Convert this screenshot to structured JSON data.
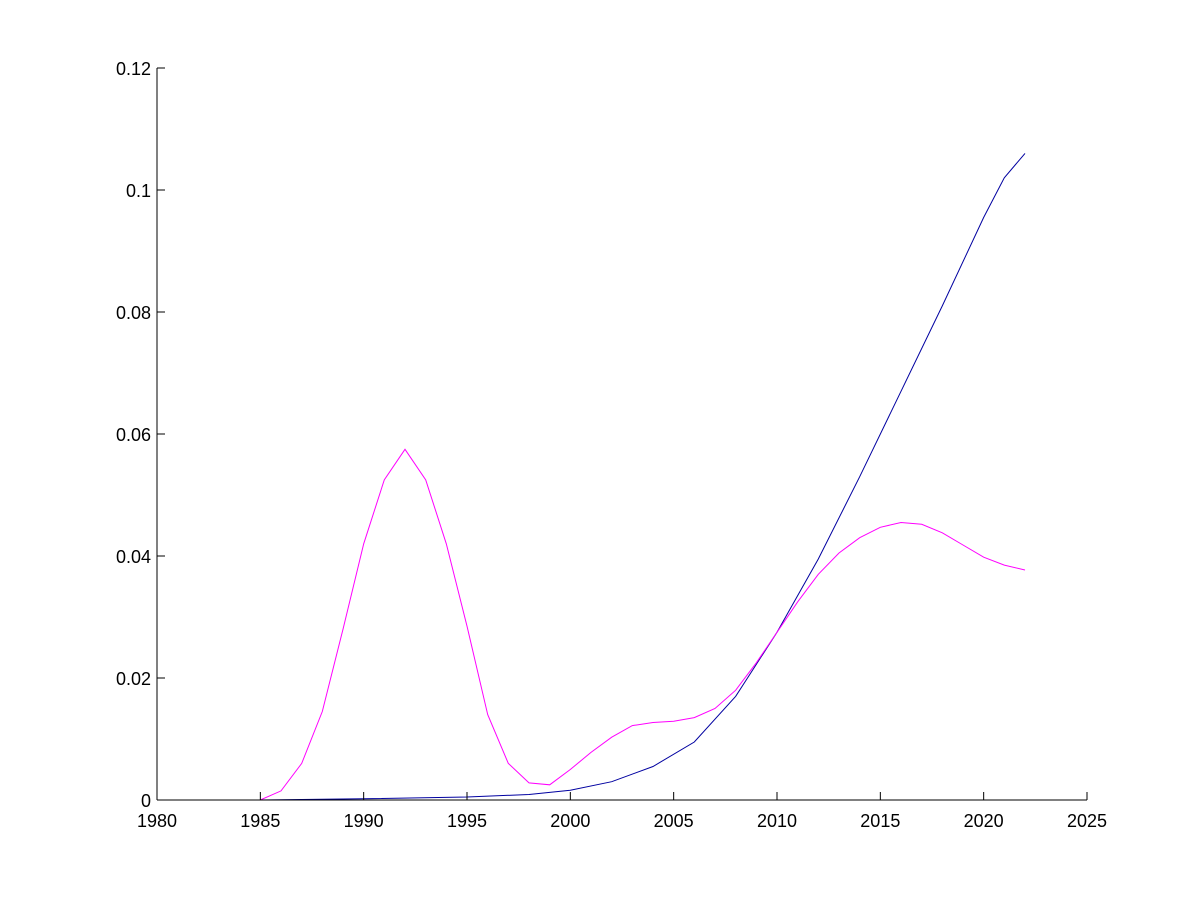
{
  "chart_data": {
    "type": "line",
    "title": "",
    "xlabel": "",
    "ylabel": "",
    "xlim": [
      1980,
      2025
    ],
    "ylim": [
      0,
      0.12
    ],
    "grid": false,
    "x_ticks": [
      1980,
      1985,
      1990,
      1995,
      2000,
      2005,
      2010,
      2015,
      2020,
      2025
    ],
    "x_tick_labels": [
      "1980",
      "1985",
      "1990",
      "1995",
      "2000",
      "2005",
      "2010",
      "2015",
      "2020",
      "2025"
    ],
    "y_ticks": [
      0,
      0.02,
      0.04,
      0.06,
      0.08,
      0.1,
      0.12
    ],
    "y_tick_labels": [
      "0",
      "0.02",
      "0.04",
      "0.06",
      "0.08",
      "0.1",
      "0.12"
    ],
    "series": [
      {
        "color": "#0000a0",
        "x": [
          1980,
          1985,
          1990,
          1995,
          1998,
          2000,
          2002,
          2004,
          2006,
          2008,
          2010,
          2012,
          2014,
          2016,
          2018,
          2020,
          2021,
          2022
        ],
        "y": [
          0,
          0,
          0.0002,
          0.0005,
          0.0009,
          0.0016,
          0.003,
          0.0055,
          0.0095,
          0.017,
          0.0275,
          0.0395,
          0.053,
          0.067,
          0.081,
          0.0955,
          0.102,
          0.106
        ]
      },
      {
        "color": "#ff00ff",
        "x": [
          1980,
          1985,
          1986,
          1987,
          1988,
          1989,
          1990,
          1991,
          1992,
          1993,
          1994,
          1995,
          1996,
          1997,
          1998,
          1999,
          2000,
          2001,
          2002,
          2003,
          2004,
          2005,
          2006,
          2007,
          2008,
          2009,
          2010,
          2011,
          2012,
          2013,
          2014,
          2015,
          2016,
          2017,
          2018,
          2019,
          2020,
          2021,
          2022
        ],
        "y": [
          0,
          0,
          0.0015,
          0.006,
          0.0145,
          0.028,
          0.042,
          0.0525,
          0.0575,
          0.0525,
          0.042,
          0.0285,
          0.014,
          0.006,
          0.0028,
          0.0025,
          0.005,
          0.0078,
          0.0103,
          0.0122,
          0.0127,
          0.0129,
          0.0135,
          0.015,
          0.018,
          0.0225,
          0.0275,
          0.0325,
          0.037,
          0.0405,
          0.043,
          0.0447,
          0.0455,
          0.0452,
          0.0438,
          0.0418,
          0.0398,
          0.0385,
          0.0377
        ]
      }
    ]
  }
}
